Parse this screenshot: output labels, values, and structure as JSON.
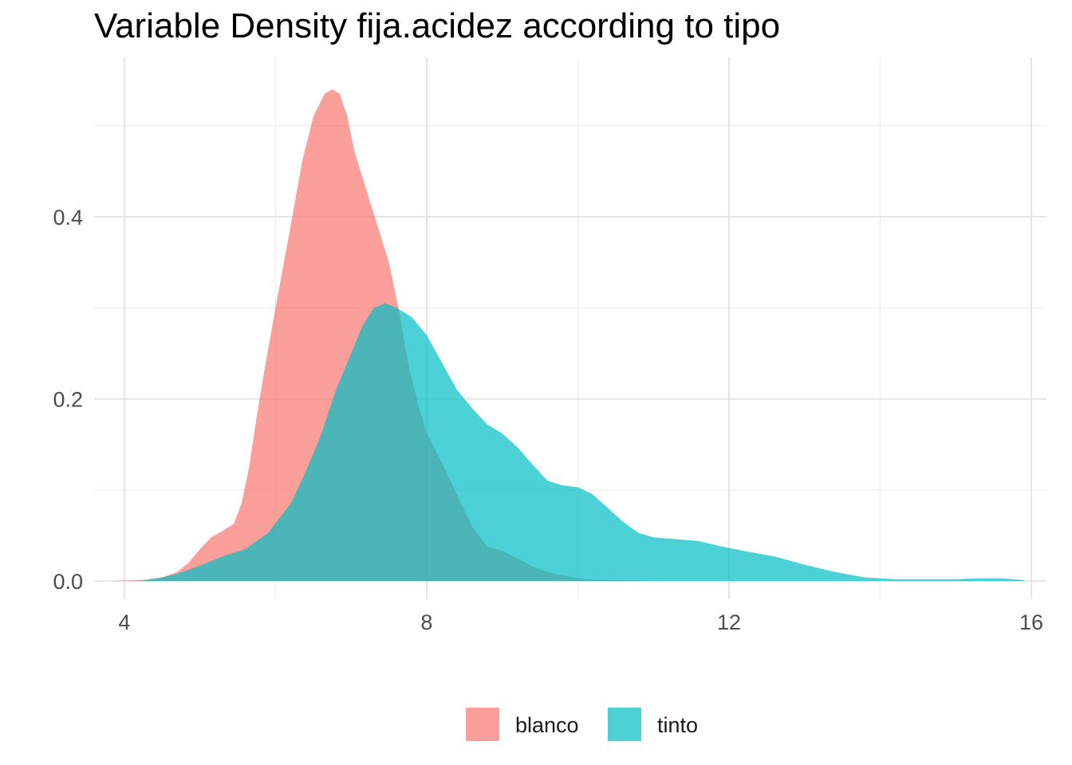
{
  "chart_data": {
    "type": "area",
    "title": "Variable Density fija.acidez according to tipo",
    "xlabel": "",
    "ylabel": "",
    "xlim": [
      3.6,
      16.2
    ],
    "ylim": [
      -0.02,
      0.575
    ],
    "x_ticks": [
      4,
      8,
      12,
      16
    ],
    "x_tick_labels": [
      "4",
      "8",
      "12",
      "16"
    ],
    "y_ticks": [
      0.0,
      0.2,
      0.4
    ],
    "y_tick_labels": [
      "0.0",
      "0.2",
      "0.4"
    ],
    "grid": true,
    "legend_position": "bottom",
    "fill_opacity": 0.7,
    "series": [
      {
        "name": "blanco",
        "color": "#F8766D",
        "points": [
          [
            3.8,
            0.0
          ],
          [
            4.2,
            0.001
          ],
          [
            4.5,
            0.004
          ],
          [
            4.7,
            0.01
          ],
          [
            4.85,
            0.02
          ],
          [
            5.0,
            0.035
          ],
          [
            5.15,
            0.048
          ],
          [
            5.3,
            0.055
          ],
          [
            5.45,
            0.063
          ],
          [
            5.55,
            0.085
          ],
          [
            5.65,
            0.125
          ],
          [
            5.75,
            0.18
          ],
          [
            5.85,
            0.23
          ],
          [
            6.0,
            0.3
          ],
          [
            6.2,
            0.39
          ],
          [
            6.35,
            0.46
          ],
          [
            6.5,
            0.51
          ],
          [
            6.65,
            0.535
          ],
          [
            6.75,
            0.54
          ],
          [
            6.85,
            0.535
          ],
          [
            6.95,
            0.51
          ],
          [
            7.05,
            0.47
          ],
          [
            7.2,
            0.43
          ],
          [
            7.35,
            0.39
          ],
          [
            7.5,
            0.35
          ],
          [
            7.65,
            0.29
          ],
          [
            7.75,
            0.24
          ],
          [
            7.9,
            0.19
          ],
          [
            8.0,
            0.163
          ],
          [
            8.2,
            0.13
          ],
          [
            8.4,
            0.095
          ],
          [
            8.6,
            0.06
          ],
          [
            8.8,
            0.038
          ],
          [
            9.0,
            0.033
          ],
          [
            9.2,
            0.025
          ],
          [
            9.4,
            0.016
          ],
          [
            9.6,
            0.01
          ],
          [
            9.8,
            0.006
          ],
          [
            10.1,
            0.002
          ],
          [
            10.5,
            0.001
          ],
          [
            11.0,
            0.0
          ],
          [
            12.0,
            0.0
          ],
          [
            13.0,
            0.0
          ],
          [
            14.2,
            0.0
          ]
        ]
      },
      {
        "name": "tinto",
        "color": "#00BFC4",
        "points": [
          [
            4.1,
            0.0
          ],
          [
            4.3,
            0.001
          ],
          [
            4.5,
            0.004
          ],
          [
            4.7,
            0.008
          ],
          [
            5.0,
            0.017
          ],
          [
            5.3,
            0.027
          ],
          [
            5.6,
            0.035
          ],
          [
            5.9,
            0.053
          ],
          [
            6.2,
            0.085
          ],
          [
            6.4,
            0.12
          ],
          [
            6.6,
            0.16
          ],
          [
            6.8,
            0.21
          ],
          [
            7.0,
            0.25
          ],
          [
            7.15,
            0.28
          ],
          [
            7.3,
            0.3
          ],
          [
            7.45,
            0.305
          ],
          [
            7.6,
            0.3
          ],
          [
            7.8,
            0.29
          ],
          [
            8.0,
            0.27
          ],
          [
            8.2,
            0.24
          ],
          [
            8.4,
            0.21
          ],
          [
            8.6,
            0.19
          ],
          [
            8.8,
            0.172
          ],
          [
            9.0,
            0.162
          ],
          [
            9.2,
            0.147
          ],
          [
            9.4,
            0.128
          ],
          [
            9.6,
            0.11
          ],
          [
            9.8,
            0.105
          ],
          [
            10.0,
            0.103
          ],
          [
            10.2,
            0.095
          ],
          [
            10.4,
            0.08
          ],
          [
            10.6,
            0.065
          ],
          [
            10.8,
            0.053
          ],
          [
            11.0,
            0.048
          ],
          [
            11.3,
            0.046
          ],
          [
            11.6,
            0.044
          ],
          [
            11.9,
            0.038
          ],
          [
            12.2,
            0.033
          ],
          [
            12.6,
            0.027
          ],
          [
            13.0,
            0.018
          ],
          [
            13.4,
            0.01
          ],
          [
            13.8,
            0.004
          ],
          [
            14.2,
            0.002
          ],
          [
            14.6,
            0.002
          ],
          [
            15.0,
            0.002
          ],
          [
            15.3,
            0.003
          ],
          [
            15.6,
            0.003
          ],
          [
            15.9,
            0.001
          ]
        ]
      }
    ]
  }
}
